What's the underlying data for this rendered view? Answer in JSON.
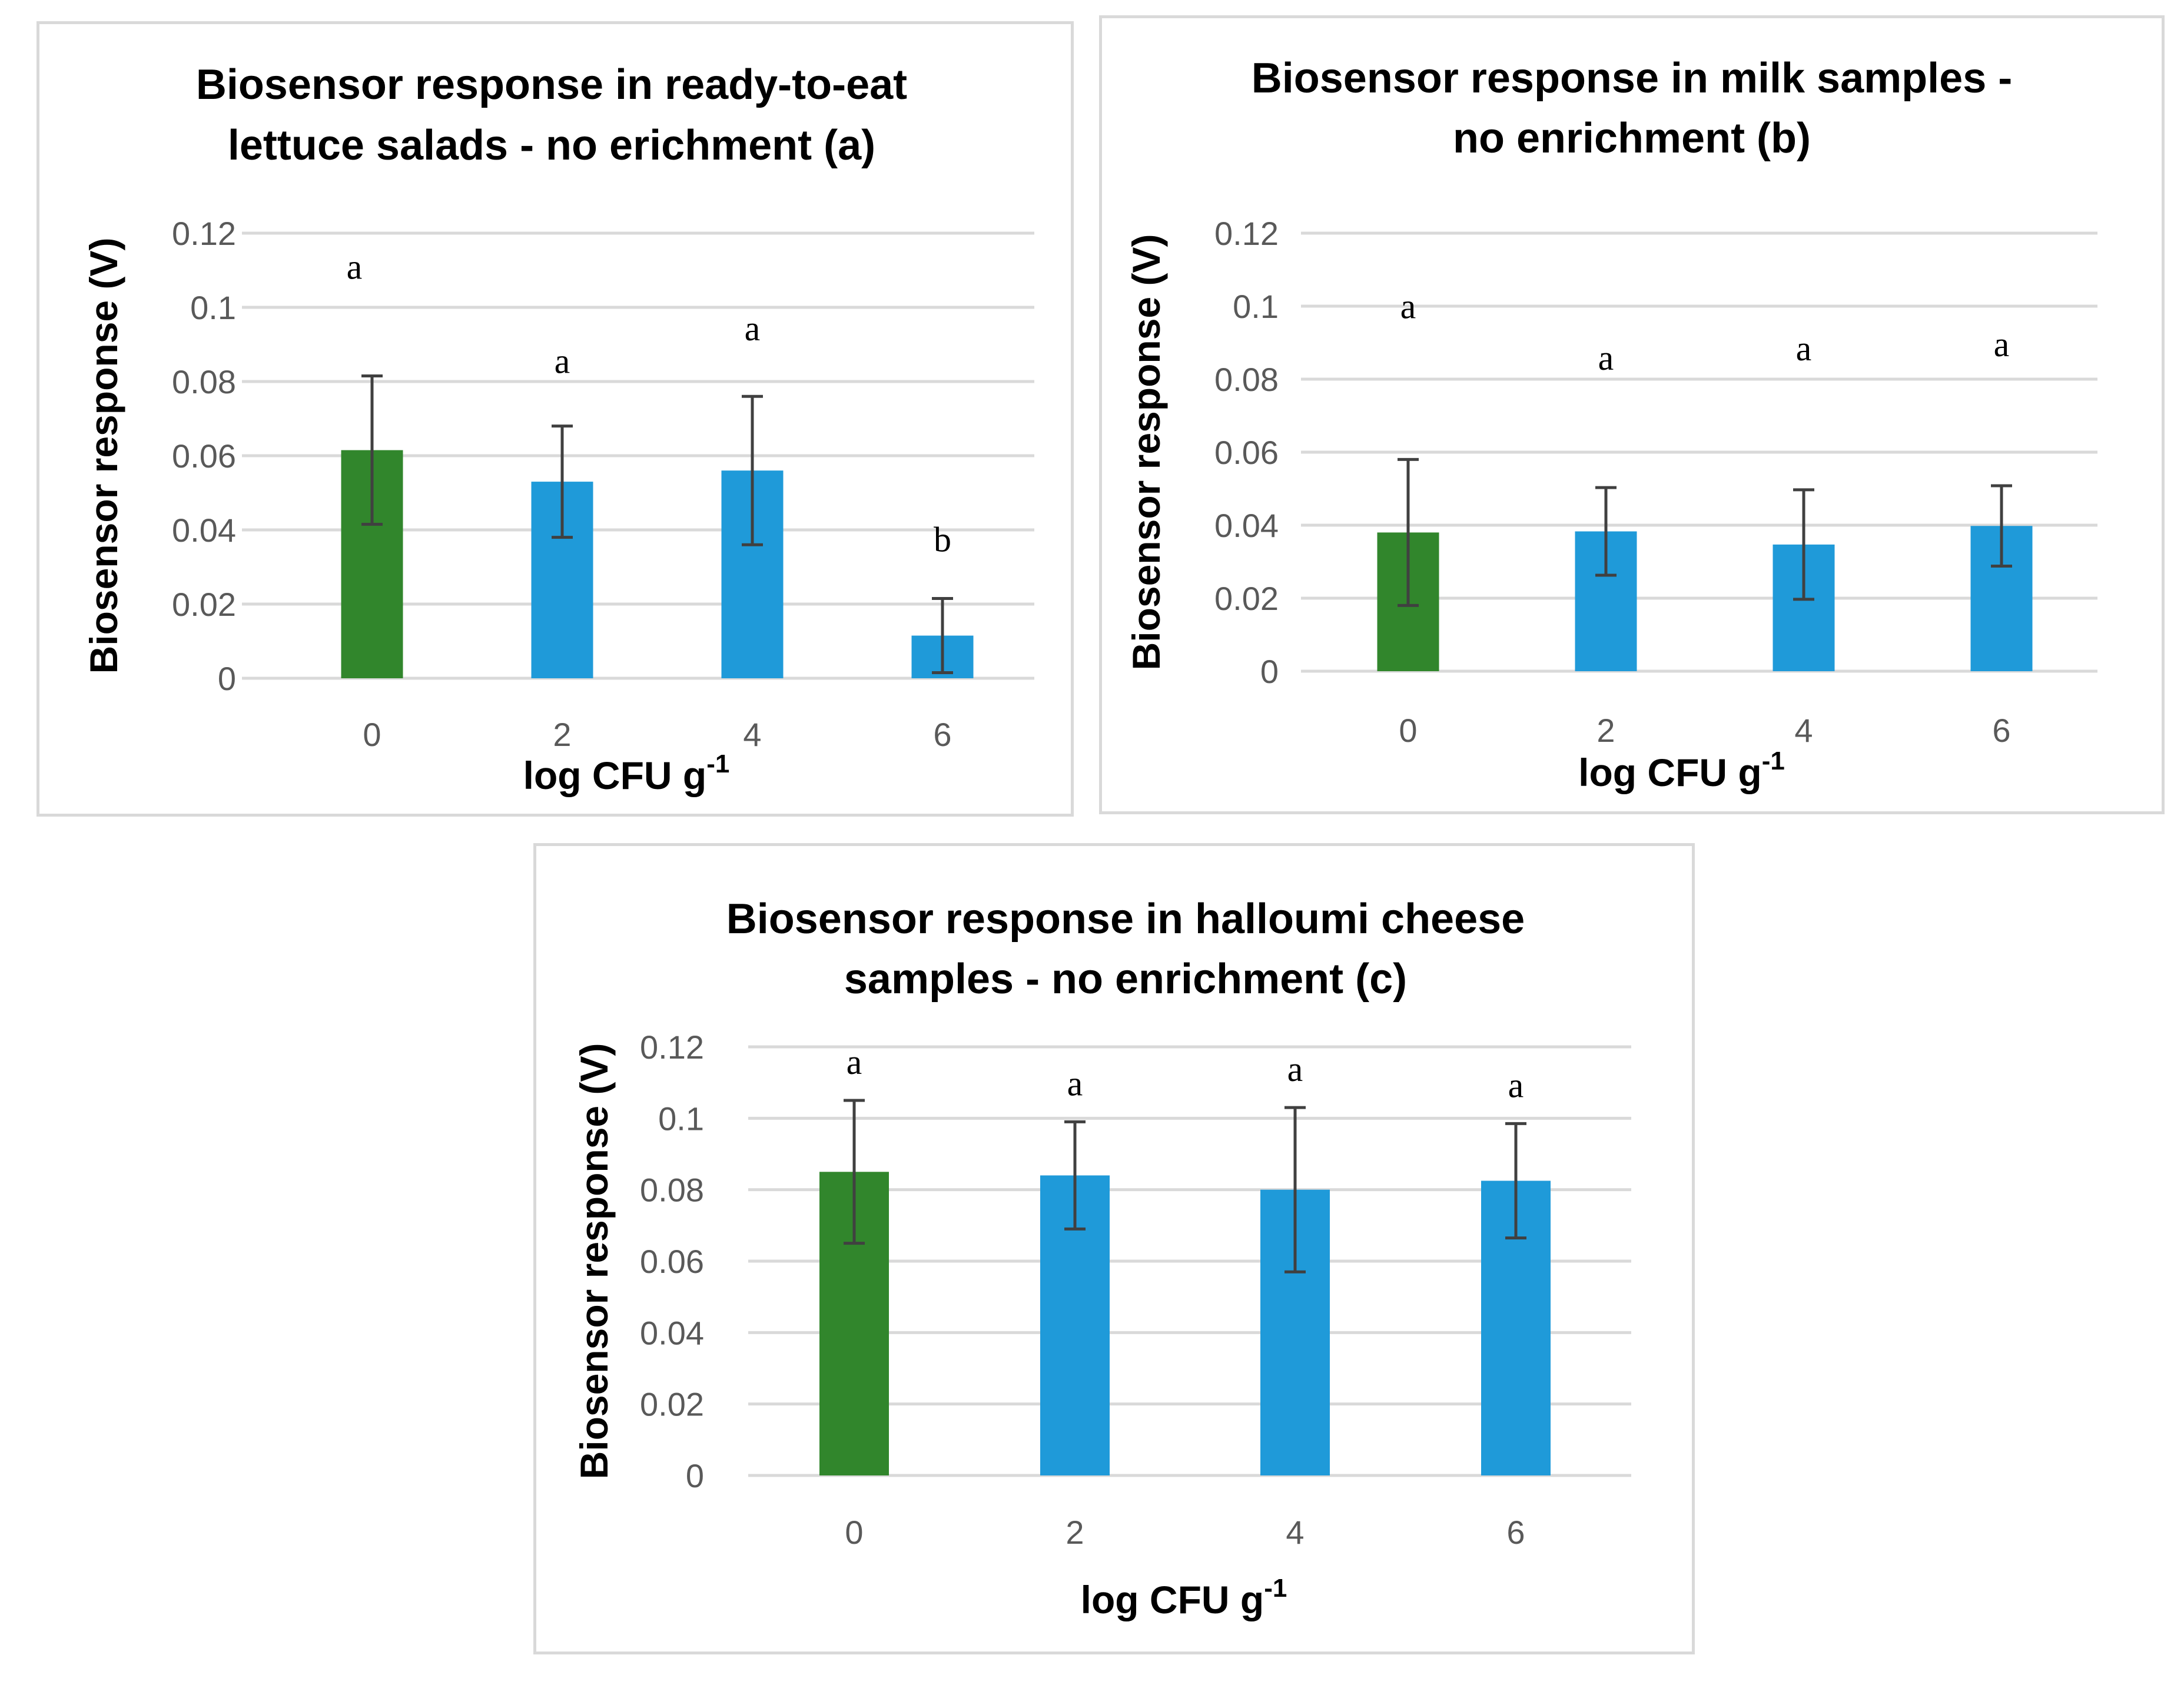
{
  "colors": {
    "control": "#31862c",
    "treatment": "#1f9ad9",
    "grid": "#d9d9d9",
    "errorbar": "#404040"
  },
  "chart_data": [
    {
      "type": "bar",
      "title": [
        "Biosensor response in ready-to-eat",
        "lettuce salads - no erichment (a)"
      ],
      "xlabel": "log CFU g",
      "xlabel_sup": "-1",
      "ylabel": "Biosensor response (V)",
      "categories": [
        "0",
        "2",
        "4",
        "6"
      ],
      "values": [
        0.0615,
        0.053,
        0.056,
        0.0115
      ],
      "errors": [
        0.02,
        0.015,
        0.02,
        0.01
      ],
      "significance": [
        "a",
        "a",
        "a",
        "b"
      ],
      "ylim": [
        0,
        0.12
      ],
      "yticks": [
        0,
        0.02,
        0.04,
        0.06,
        0.08,
        0.1,
        0.12
      ],
      "ytick_labels": [
        "0",
        "0.02",
        "0.04",
        "0.06",
        "0.08",
        "0.1",
        "0.12"
      ],
      "grid": true
    },
    {
      "type": "bar",
      "title": [
        "Biosensor response in milk samples -",
        "no enrichment (b)"
      ],
      "xlabel": "log CFU g",
      "xlabel_sup": "-1",
      "ylabel": "Biosensor response (V)",
      "categories": [
        "0",
        "2",
        "4",
        "6"
      ],
      "values": [
        0.038,
        0.0383,
        0.0347,
        0.0398
      ],
      "errors": [
        0.02,
        0.012,
        0.015,
        0.011
      ],
      "significance": [
        "a",
        "a",
        "a",
        "a"
      ],
      "ylim": [
        0,
        0.12
      ],
      "yticks": [
        0,
        0.02,
        0.04,
        0.06,
        0.08,
        0.1,
        0.12
      ],
      "ytick_labels": [
        "0",
        "0.02",
        "0.04",
        "0.06",
        "0.08",
        "0.1",
        "0.12"
      ],
      "grid": true
    },
    {
      "type": "bar",
      "title": [
        "Biosensor response in halloumi cheese",
        "samples - no enrichment (c)"
      ],
      "xlabel": "log CFU g",
      "xlabel_sup": "-1",
      "ylabel": "Biosensor response (V)",
      "categories": [
        "0",
        "2",
        "4",
        "6"
      ],
      "values": [
        0.085,
        0.084,
        0.08,
        0.0825
      ],
      "errors": [
        0.02,
        0.015,
        0.023,
        0.016
      ],
      "significance": [
        "a",
        "a",
        "a",
        "a"
      ],
      "ylim": [
        0,
        0.12
      ],
      "yticks": [
        0,
        0.02,
        0.04,
        0.06,
        0.08,
        0.1,
        0.12
      ],
      "ytick_labels": [
        "0",
        "0.02",
        "0.04",
        "0.06",
        "0.08",
        "0.1",
        "0.12"
      ],
      "grid": true
    }
  ]
}
